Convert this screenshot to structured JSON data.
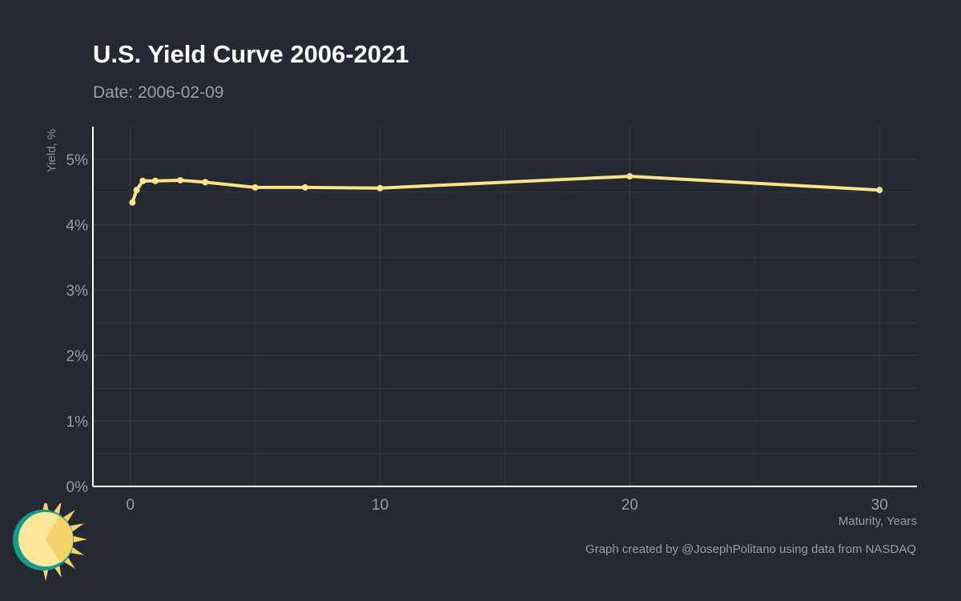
{
  "header": {
    "title": "U.S. Yield Curve 2006-2021",
    "subtitle_prefix": "Date: ",
    "date": "2006-02-09"
  },
  "footer": {
    "caption": "Graph created by @JosephPolitano using data from NASDAQ"
  },
  "logo": {
    "icon": "sun-logo-icon",
    "colors": [
      "#f5d36a",
      "#fbe69a",
      "#169c8c"
    ]
  },
  "chart_data": {
    "type": "line",
    "title": "U.S. Yield Curve 2006-2021",
    "subtitle": "Date: 2006-02-09",
    "xlabel": "Maturity, Years",
    "ylabel": "Yield, %",
    "xlim": [
      -1.5,
      31.5
    ],
    "ylim": [
      0,
      5.5
    ],
    "x_ticks": [
      0,
      10,
      20,
      30
    ],
    "x_tick_labels": [
      "0",
      "10",
      "20",
      "30"
    ],
    "y_ticks": [
      0,
      1,
      2,
      3,
      4,
      5
    ],
    "y_tick_labels": [
      "0%",
      "1%",
      "2%",
      "3%",
      "4%",
      "5%"
    ],
    "grid": true,
    "legend": "none",
    "line_color": "#fbe38a",
    "series": [
      {
        "x": [
          0.083,
          0.25,
          0.5,
          1,
          2,
          3,
          5,
          7,
          10,
          20,
          30
        ],
        "y": [
          4.34,
          4.53,
          4.67,
          4.67,
          4.68,
          4.65,
          4.57,
          4.57,
          4.56,
          4.74,
          4.53
        ]
      }
    ]
  }
}
